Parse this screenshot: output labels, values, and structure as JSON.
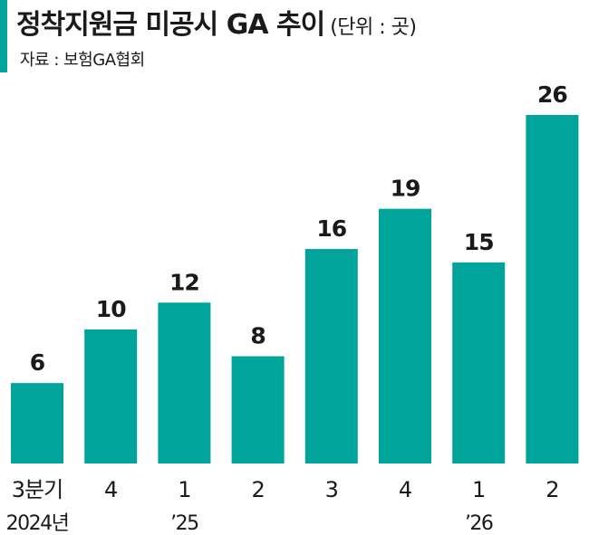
{
  "header": {
    "title": "정착지원금 미공시 GA 추이",
    "unit": "(단위 : 곳)",
    "source": "자료 : 보험GA협회"
  },
  "colors": {
    "bar": "#00a49a",
    "accent": "#00a49a",
    "text": "#1a1a1a"
  },
  "chart_data": {
    "type": "bar",
    "title": "정착지원금 미공시 GA 추이",
    "categories": [
      "3분기",
      "4",
      "1",
      "2",
      "3",
      "4",
      "1",
      "2"
    ],
    "values": [
      6,
      10,
      12,
      8,
      16,
      19,
      15,
      26
    ],
    "year_labels": [
      {
        "index": 0,
        "text": "2024년"
      },
      {
        "index": 2,
        "text": "’25"
      },
      {
        "index": 6,
        "text": "’26"
      }
    ],
    "xlabel": "",
    "ylabel": "",
    "ylim": [
      0,
      26
    ],
    "grid": false,
    "legend": "none"
  }
}
